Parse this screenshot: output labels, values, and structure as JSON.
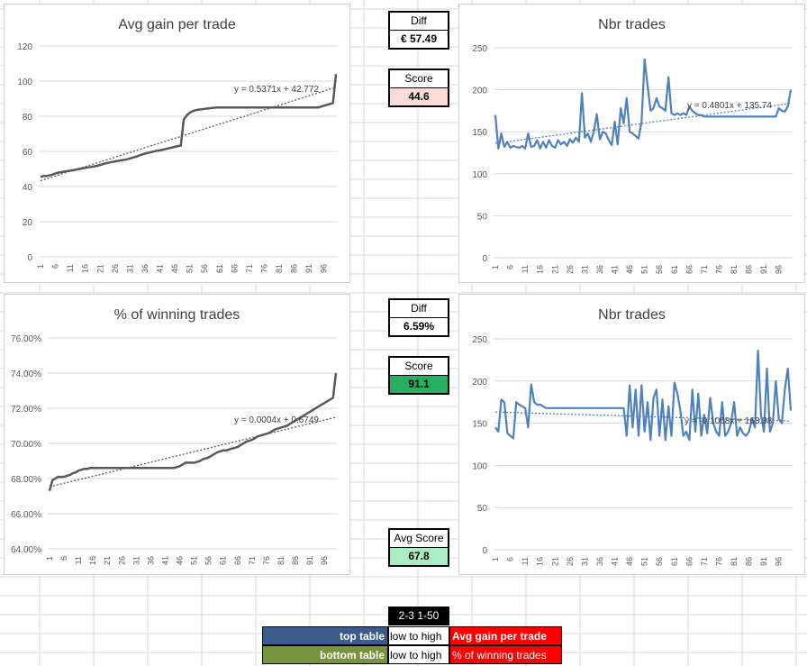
{
  "colors": {
    "grid": "#d9d9d9",
    "gray_line": "#595959",
    "blue_line": "#4f81bd",
    "score_top_bg": "#fadbd8",
    "score_bottom_bg": "#27ae60",
    "avg_score_bg": "#abebc6",
    "top_table_bg": "#3b5b8a",
    "bottom_table_bg": "#77933c",
    "red_bg": "#ff0000",
    "black_bg": "#000000"
  },
  "middle": {
    "diff_top_label": "Diff",
    "diff_top_value": "€ 57.49",
    "score_top_label": "Score",
    "score_top_value": "44.6",
    "diff_bottom_label": "Diff",
    "diff_bottom_value": "6.59%",
    "score_bottom_label": "Score",
    "score_bottom_value": "91.1",
    "avg_score_label": "Avg Score",
    "avg_score_value": "67.8"
  },
  "legend": {
    "code": "2-3 1-50",
    "top_table": "top table",
    "bottom_table": "bottom table",
    "order_top": "low to high",
    "order_bottom": "low to high",
    "metric_top": "Avg gain per trade",
    "metric_bottom": "% of winning trades"
  },
  "chart_data": [
    {
      "type": "line",
      "title": "Avg gain per trade",
      "ylim": [
        0,
        120
      ],
      "yticks": [
        "0",
        "20",
        "40",
        "60",
        "80",
        "100",
        "120"
      ],
      "xticks": [
        "1",
        "6",
        "11",
        "16",
        "21",
        "26",
        "31",
        "36",
        "41",
        "46",
        "51",
        "56",
        "61",
        "66",
        "71",
        "76",
        "81",
        "86",
        "91",
        "96"
      ],
      "trendline_label": "y = 0.5371x + 42.772",
      "trendline": {
        "slope": 0.5371,
        "intercept": 42.772
      },
      "series": [
        {
          "name": "Avg gain per trade",
          "values": [
            45.5,
            46.0,
            46.0,
            46.3,
            46.8,
            47.5,
            47.9,
            48.2,
            48.5,
            48.8,
            49.0,
            49.3,
            49.7,
            50.0,
            50.3,
            50.6,
            50.9,
            51.2,
            51.5,
            51.8,
            52.3,
            52.8,
            53.3,
            53.7,
            54.0,
            54.3,
            54.6,
            54.9,
            55.2,
            55.5,
            56.0,
            56.5,
            57.0,
            57.6,
            58.2,
            58.7,
            59.2,
            59.6,
            60.0,
            60.3,
            60.6,
            61.0,
            61.4,
            61.8,
            62.2,
            62.6,
            63.0,
            63.3,
            78.0,
            80.5,
            82.0,
            83.0,
            83.5,
            83.8,
            84.0,
            84.2,
            84.4,
            84.6,
            84.8,
            85.0,
            85.0,
            85.0,
            85.0,
            85.0,
            85.0,
            85.0,
            85.0,
            85.0,
            85.0,
            85.0,
            85.0,
            85.0,
            85.0,
            85.0,
            85.0,
            85.0,
            85.0,
            85.0,
            85.0,
            85.0,
            85.0,
            85.0,
            85.0,
            85.0,
            85.0,
            85.0,
            85.0,
            85.0,
            85.0,
            85.0,
            85.0,
            85.0,
            85.0,
            85.0,
            85.5,
            86.0,
            86.5,
            87.0,
            87.5,
            104.0
          ]
        }
      ]
    },
    {
      "type": "line",
      "title": "Nbr trades",
      "ylim": [
        0,
        250
      ],
      "yticks": [
        "0",
        "50",
        "100",
        "150",
        "200",
        "250"
      ],
      "xticks": [
        "1",
        "6",
        "11",
        "16",
        "21",
        "26",
        "31",
        "36",
        "41",
        "46",
        "51",
        "56",
        "61",
        "66",
        "71",
        "76",
        "81",
        "86",
        "91",
        "96"
      ],
      "trendline_label": "y = 0.4801x + 135.74",
      "trendline": {
        "slope": 0.4801,
        "intercept": 135.74
      },
      "series": [
        {
          "name": "Nbr trades",
          "values": [
            170,
            130,
            148,
            132,
            138,
            131,
            133,
            132,
            131,
            133,
            130,
            148,
            132,
            133,
            140,
            130,
            138,
            131,
            140,
            133,
            131,
            140,
            135,
            138,
            133,
            141,
            137,
            143,
            138,
            196,
            143,
            148,
            138,
            150,
            171,
            141,
            150,
            148,
            140,
            134,
            162,
            135,
            178,
            160,
            190,
            150,
            148,
            145,
            142,
            162,
            236,
            205,
            175,
            178,
            190,
            180,
            178,
            175,
            215,
            172,
            170,
            172,
            170,
            172,
            170,
            180,
            175,
            172,
            170,
            170,
            168,
            168,
            168,
            168,
            168,
            168,
            168,
            168,
            168,
            168,
            168,
            168,
            168,
            168,
            168,
            168,
            168,
            168,
            168,
            168,
            168,
            168,
            168,
            168,
            168,
            178,
            175,
            174,
            180,
            200
          ]
        }
      ]
    },
    {
      "type": "line",
      "title": "% of winning trades",
      "ylim": [
        64,
        76
      ],
      "yticks": [
        "64.00%",
        "66.00%",
        "68.00%",
        "70.00%",
        "72.00%",
        "74.00%",
        "76.00%"
      ],
      "xticks": [
        "1",
        "6",
        "11",
        "16",
        "21",
        "26",
        "31",
        "36",
        "41",
        "46",
        "51",
        "56",
        "61",
        "66",
        "71",
        "76",
        "81",
        "86",
        "91",
        "96"
      ],
      "trendline_label": "y = 0.0004x + 0.6749",
      "trendline": {
        "slope": 0.04,
        "intercept": 67.49
      },
      "series": [
        {
          "name": "% of winning trades",
          "values": [
            67.3,
            67.9,
            68.0,
            68.1,
            68.1,
            68.1,
            68.15,
            68.2,
            68.3,
            68.35,
            68.45,
            68.5,
            68.55,
            68.55,
            68.6,
            68.6,
            68.6,
            68.6,
            68.6,
            68.6,
            68.6,
            68.6,
            68.6,
            68.6,
            68.6,
            68.6,
            68.6,
            68.6,
            68.6,
            68.6,
            68.6,
            68.6,
            68.6,
            68.6,
            68.6,
            68.6,
            68.6,
            68.6,
            68.6,
            68.6,
            68.6,
            68.6,
            68.6,
            68.6,
            68.65,
            68.7,
            68.8,
            68.9,
            68.9,
            68.9,
            68.9,
            68.95,
            69.0,
            69.1,
            69.15,
            69.2,
            69.3,
            69.4,
            69.5,
            69.55,
            69.6,
            69.6,
            69.65,
            69.7,
            69.75,
            69.8,
            69.9,
            70.0,
            70.1,
            70.15,
            70.2,
            70.3,
            70.4,
            70.45,
            70.5,
            70.55,
            70.6,
            70.7,
            70.8,
            70.85,
            70.9,
            70.95,
            71.0,
            71.1,
            71.2,
            71.3,
            71.4,
            71.5,
            71.6,
            71.7,
            71.8,
            71.9,
            72.0,
            72.1,
            72.2,
            72.3,
            72.4,
            72.5,
            72.6,
            74.0
          ]
        }
      ]
    },
    {
      "type": "line",
      "title": "Nbr trades",
      "ylim": [
        0,
        250
      ],
      "yticks": [
        "0",
        "50",
        "100",
        "150",
        "200",
        "250"
      ],
      "xticks": [
        "1",
        "6",
        "11",
        "16",
        "21",
        "26",
        "31",
        "36",
        "41",
        "46",
        "51",
        "56",
        "61",
        "66",
        "71",
        "76",
        "81",
        "86",
        "91",
        "96"
      ],
      "trendline_label": "y = -0.1068x + 163.38",
      "trendline": {
        "slope": -0.1068,
        "intercept": 163.38
      },
      "series": [
        {
          "name": "Nbr trades",
          "values": [
            145,
            140,
            178,
            175,
            138,
            135,
            132,
            175,
            172,
            170,
            168,
            145,
            196,
            175,
            172,
            172,
            170,
            168,
            168,
            168,
            168,
            168,
            168,
            168,
            168,
            168,
            168,
            168,
            168,
            168,
            168,
            168,
            168,
            168,
            168,
            168,
            168,
            168,
            168,
            168,
            168,
            168,
            168,
            168,
            135,
            195,
            145,
            190,
            135,
            195,
            140,
            175,
            130,
            180,
            190,
            135,
            178,
            130,
            170,
            135,
            198,
            185,
            165,
            135,
            140,
            130,
            190,
            140,
            185,
            135,
            160,
            138,
            180,
            150,
            140,
            135,
            175,
            135,
            140,
            150,
            175,
            135,
            145,
            138,
            135,
            140,
            155,
            145,
            236,
            160,
            140,
            215,
            140,
            150,
            200,
            155,
            150,
            190,
            215,
            165
          ]
        }
      ]
    }
  ]
}
